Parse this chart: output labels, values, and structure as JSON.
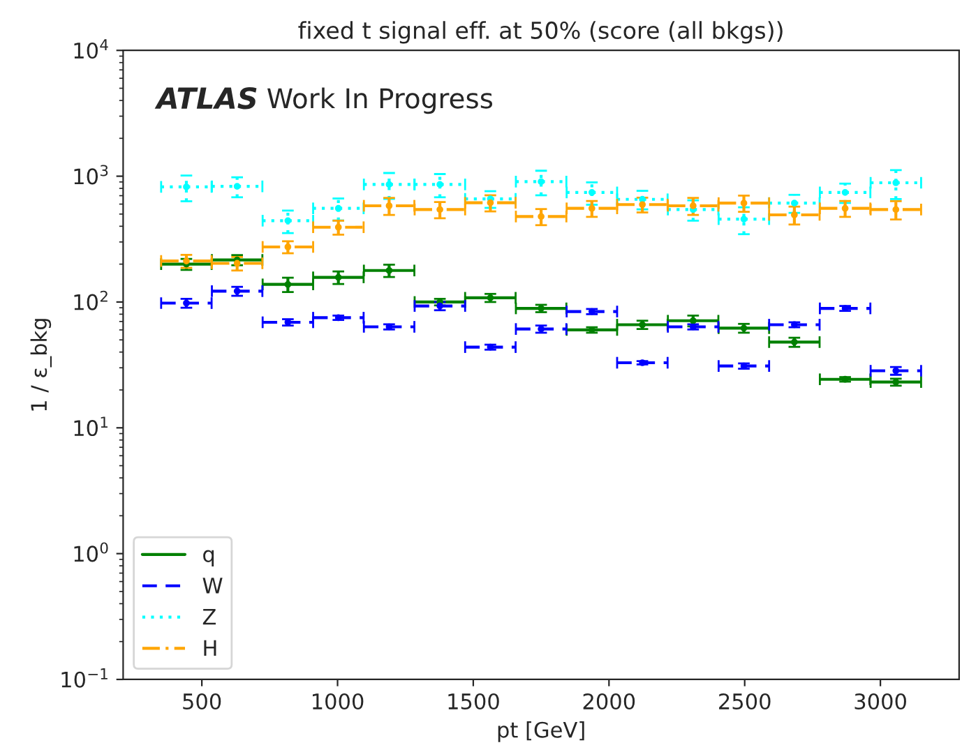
{
  "chart_data": {
    "type": "scatter",
    "title": "fixed t signal eff. at 50% (score (all bkgs))",
    "xlabel": "pt [GeV]",
    "ylabel": "1 / ε_bkg",
    "annotations": [
      "ATLAS",
      "Work In Progress"
    ],
    "x": [
      443,
      630,
      817,
      1003,
      1190,
      1377,
      1563,
      1750,
      1937,
      2123,
      2310,
      2497,
      2683,
      2870,
      3057
    ],
    "marker": "circle",
    "log": "y",
    "grid": false,
    "legend": "bottom left",
    "xlim": [
      210,
      3290
    ],
    "xticks": [
      500,
      1000,
      1500,
      2000,
      2500,
      3000
    ],
    "ylim": [
      0.1,
      10000
    ],
    "yticks": [
      {
        "value": 0.1,
        "label": "10$^{−1}$"
      },
      {
        "value": 1,
        "label": "10$^{0}$"
      },
      {
        "value": 10,
        "label": "10$^{1}$"
      },
      {
        "value": 100,
        "label": "10$^{2}$"
      },
      {
        "value": 1000,
        "label": "10$^{3}$"
      },
      {
        "value": 10000,
        "label": "10$^{4}$"
      }
    ],
    "series": [
      {
        "name": "q",
        "color": "#008000",
        "line_style": "solid",
        "values": [
          200,
          216,
          138,
          157,
          178,
          100,
          108,
          89,
          60,
          66,
          71,
          62,
          48,
          24.3,
          23.1
        ],
        "errors": [
          20,
          20,
          18,
          18,
          20,
          6,
          8,
          6,
          3,
          5,
          7,
          5,
          4,
          1,
          1.5
        ],
        "xerrors": [
          93,
          93,
          93,
          93,
          93,
          93,
          93,
          93,
          93,
          93,
          93,
          93,
          93,
          93,
          93
        ]
      },
      {
        "name": "W",
        "color": "#0000ff",
        "line_style": "dashed",
        "values": [
          98,
          122,
          69,
          75,
          63.5,
          93,
          43.8,
          61,
          84,
          32.9,
          63.5,
          31,
          66,
          89,
          28.4
        ],
        "errors": [
          8,
          10,
          4,
          3,
          3,
          7,
          2,
          4,
          4,
          1,
          3,
          1.5,
          3,
          4,
          2
        ],
        "xerrors": [
          93,
          93,
          93,
          93,
          93,
          93,
          93,
          93,
          93,
          93,
          93,
          93,
          93,
          93,
          93
        ]
      },
      {
        "name": "Z",
        "color": "#00ffff",
        "line_style": "dotted",
        "values": [
          822,
          830,
          443,
          555,
          860,
          860,
          660,
          905,
          743,
          655,
          543,
          456,
          611,
          743,
          887
        ],
        "errors": [
          190,
          150,
          90,
          110,
          200,
          180,
          100,
          200,
          150,
          110,
          100,
          110,
          100,
          130,
          230
        ],
        "xerrors": [
          93,
          93,
          93,
          93,
          93,
          93,
          93,
          93,
          93,
          93,
          93,
          93,
          93,
          93,
          93
        ]
      },
      {
        "name": "H",
        "color": "#ffa500",
        "line_style": "dashdot",
        "values": [
          212,
          203,
          274,
          393,
          582,
          543,
          615,
          478,
          555,
          595,
          582,
          611,
          493,
          555,
          543
        ],
        "errors": [
          25,
          25,
          30,
          50,
          90,
          80,
          90,
          70,
          80,
          80,
          90,
          90,
          80,
          80,
          90
        ],
        "xerrors": [
          93,
          93,
          93,
          93,
          93,
          93,
          93,
          93,
          93,
          93,
          93,
          93,
          93,
          93,
          93
        ]
      }
    ]
  }
}
